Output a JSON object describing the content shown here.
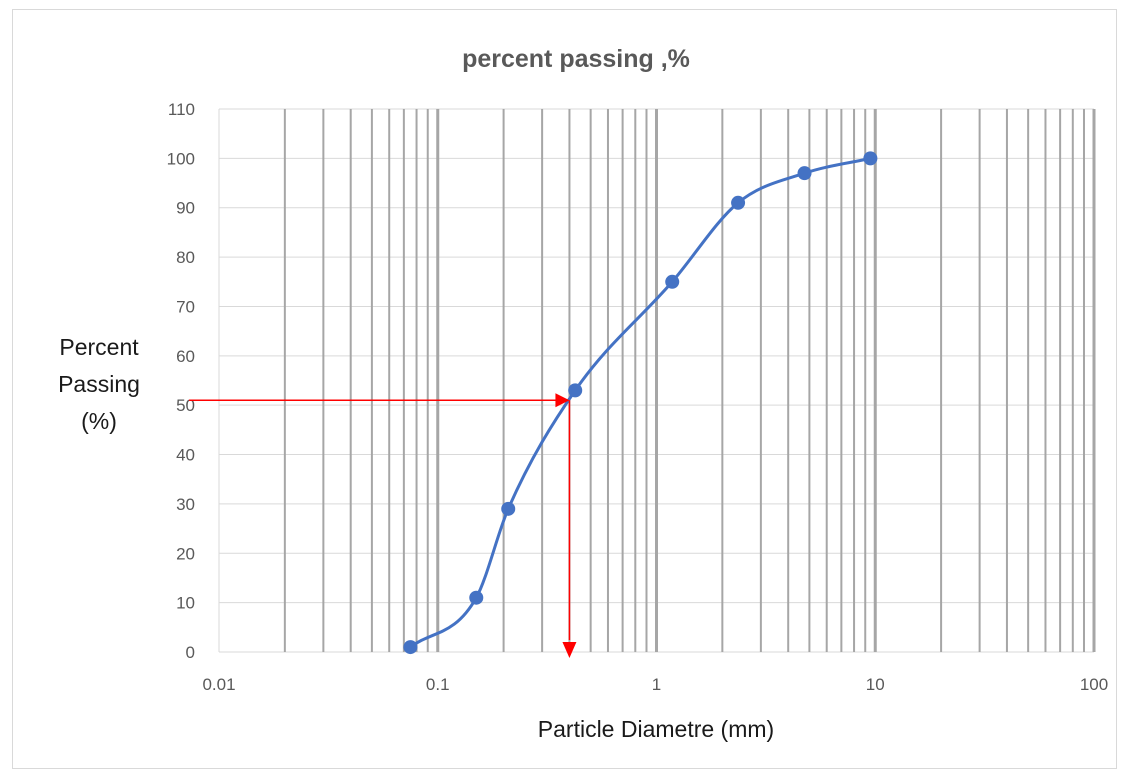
{
  "chart_data": {
    "type": "scatter",
    "title": "percent passing ,%",
    "xlabel": "Particle Diametre (mm)",
    "ylabel": [
      "Percent",
      "Passing",
      "(%)"
    ],
    "x_scale": "log",
    "xlim": [
      0.01,
      100
    ],
    "ylim": [
      0,
      110
    ],
    "x_ticks": [
      "0.01",
      "0.1",
      "1",
      "10",
      "100"
    ],
    "y_ticks": [
      "0",
      "10",
      "20",
      "30",
      "40",
      "50",
      "60",
      "70",
      "80",
      "90",
      "100",
      "110"
    ],
    "grid": true,
    "legend": "none",
    "series": [
      {
        "x": [
          0.075,
          0.15,
          0.21,
          0.425,
          1.18,
          2.36,
          4.75,
          9.5
        ],
        "y": [
          1,
          11,
          29,
          53,
          75,
          91,
          97,
          100
        ],
        "color": "#4472c4",
        "smooth": true
      }
    ],
    "annotation": {
      "d50_x": 0.4,
      "d50_y": 51,
      "color": "#ff0000"
    }
  }
}
